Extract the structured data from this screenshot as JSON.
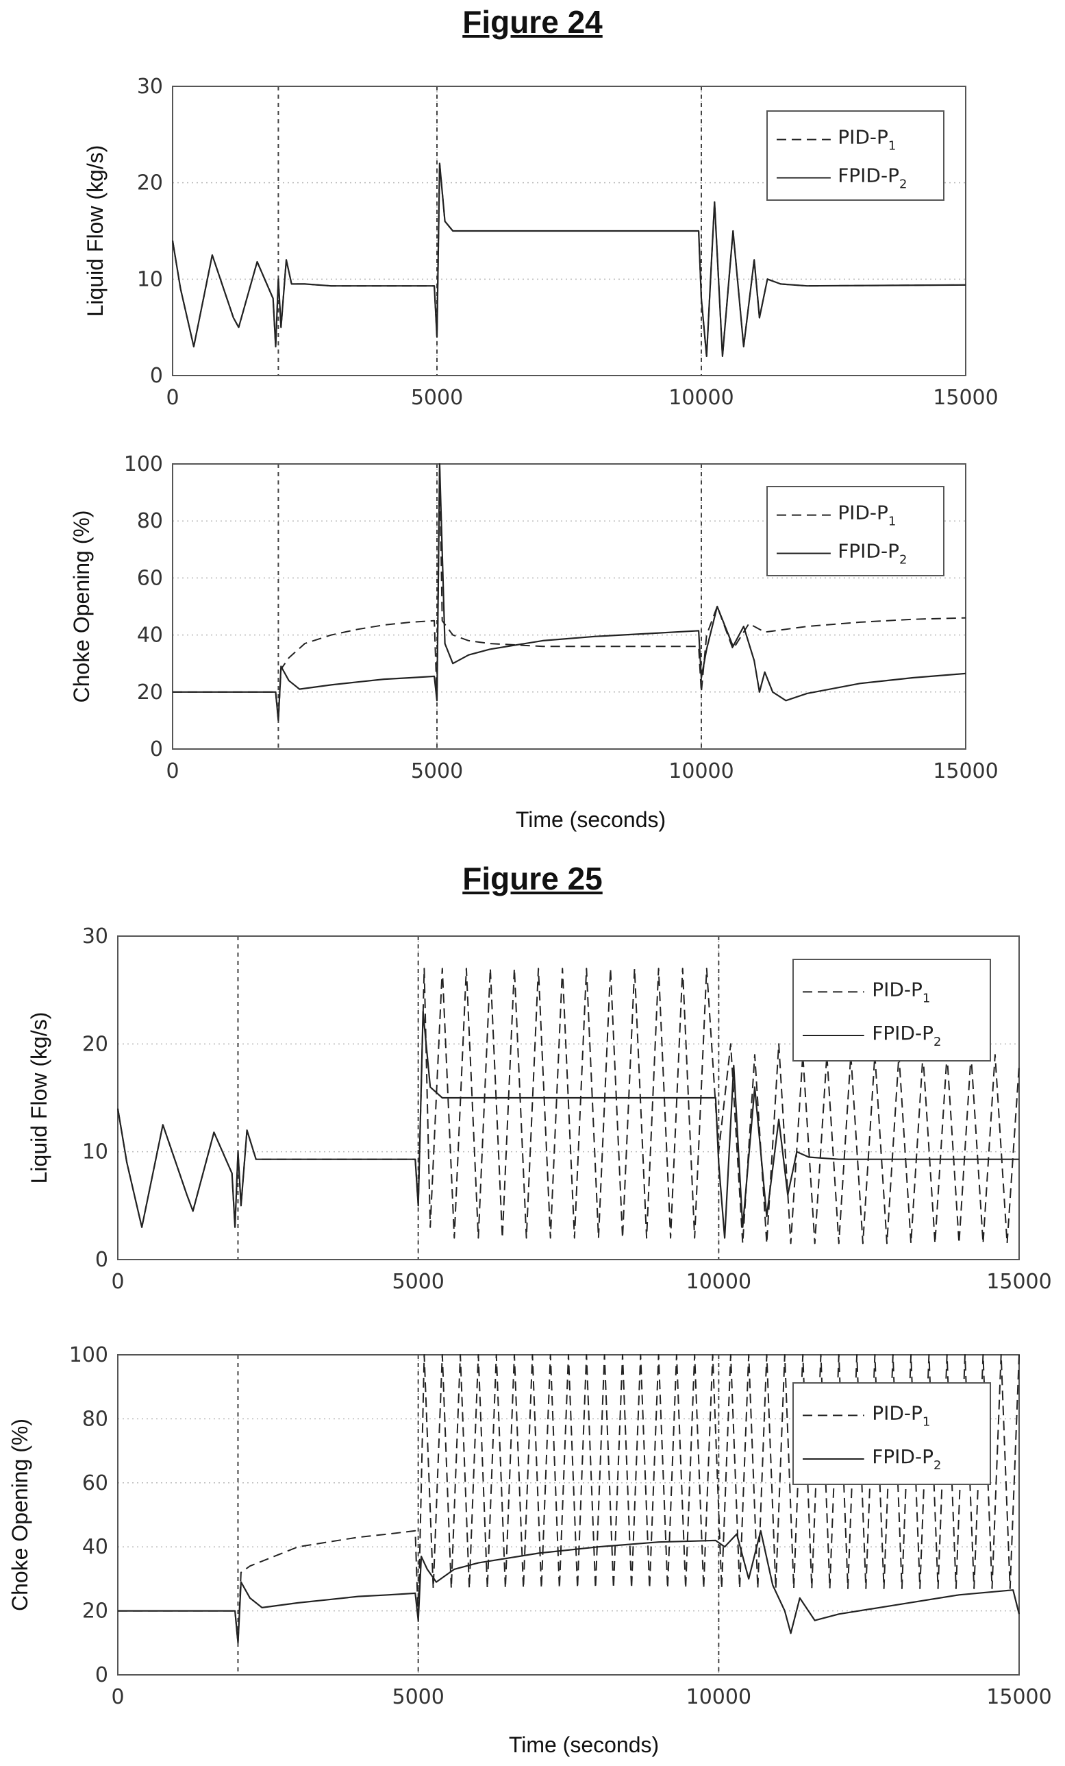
{
  "figures": [
    {
      "title": "Figure 24",
      "xlabel": "Time (seconds)"
    },
    {
      "title": "Figure 25",
      "xlabel": "Time (seconds)"
    }
  ],
  "colors": {
    "series": "#222222",
    "grid": "#b8b8b8",
    "frame": "#555555"
  },
  "chart_data": [
    {
      "type": "line",
      "figure": "Figure 24",
      "title": "",
      "xlabel": "",
      "ylabel": "Liquid Flow (kg/s)",
      "xlim": [
        0,
        15000
      ],
      "ylim": [
        0,
        30
      ],
      "xticks": [
        0,
        5000,
        10000,
        15000
      ],
      "yticks": [
        0,
        10,
        20,
        30
      ],
      "grid": true,
      "legend": "top-right",
      "legend_entries": [
        {
          "base": "PID-P",
          "sub": "1",
          "style": "dashed"
        },
        {
          "base": "FPID-P",
          "sub": "2",
          "style": "solid"
        }
      ],
      "setpoint_changes": [
        2000,
        5000,
        10000
      ],
      "series": [
        {
          "name": "PID-P1",
          "style": "dashed",
          "x": [
            0,
            150,
            400,
            750,
            1150,
            1250,
            1600,
            1900,
            1950,
            2000,
            2050,
            2150,
            2250,
            2500,
            3000,
            4950,
            5000,
            5050,
            5150,
            5300,
            5500,
            9950,
            10000,
            10100,
            10250,
            10400,
            10600,
            10800,
            11000,
            11100,
            11250,
            11500,
            12000,
            15000
          ],
          "y": [
            14,
            9,
            3,
            12.5,
            6,
            5,
            11.8,
            8,
            3,
            10,
            5,
            12,
            9.5,
            9.5,
            9.3,
            9.3,
            4,
            22,
            16,
            15,
            15,
            15,
            8,
            2,
            18,
            2,
            15,
            3,
            12,
            6,
            10,
            9.5,
            9.3,
            9.4
          ]
        },
        {
          "name": "FPID-P2",
          "style": "solid",
          "x": [
            0,
            150,
            400,
            750,
            1150,
            1250,
            1600,
            1900,
            1950,
            2000,
            2050,
            2150,
            2250,
            2500,
            3000,
            4950,
            5000,
            5050,
            5150,
            5300,
            5500,
            9950,
            10000,
            10100,
            10250,
            10400,
            10600,
            10800,
            11000,
            11100,
            11250,
            11500,
            12000,
            15000
          ],
          "y": [
            14,
            9,
            3,
            12.5,
            6,
            5,
            11.8,
            8,
            3,
            10,
            5,
            12,
            9.5,
            9.5,
            9.3,
            9.3,
            4,
            22,
            16,
            15,
            15,
            15,
            8,
            2,
            18,
            2,
            15,
            3,
            12,
            6,
            10,
            9.5,
            9.3,
            9.4
          ]
        }
      ]
    },
    {
      "type": "line",
      "figure": "Figure 24",
      "title": "",
      "xlabel": "",
      "ylabel": "Choke Opening (%)",
      "xlim": [
        0,
        15000
      ],
      "ylim": [
        0,
        100
      ],
      "xticks": [
        0,
        5000,
        10000,
        15000
      ],
      "yticks": [
        0,
        20,
        40,
        60,
        80,
        100
      ],
      "grid": true,
      "legend": "top-right",
      "legend_entries": [
        {
          "base": "PID-P",
          "sub": "1",
          "style": "dashed"
        },
        {
          "base": "FPID-P",
          "sub": "2",
          "style": "solid"
        }
      ],
      "setpoint_changes": [
        2000,
        5000,
        10000
      ],
      "series": [
        {
          "name": "PID-P1",
          "style": "dashed",
          "x": [
            0,
            1950,
            2000,
            2050,
            2200,
            2500,
            3000,
            3500,
            4000,
            4500,
            4950,
            5000,
            5050,
            5100,
            5300,
            5600,
            6000,
            7000,
            8000,
            9000,
            9950,
            10000,
            10100,
            10300,
            10600,
            10900,
            11200,
            12000,
            13000,
            14000,
            15000
          ],
          "y": [
            20,
            20,
            10,
            28,
            32,
            37,
            40,
            42,
            43.5,
            44.5,
            45,
            18,
            100,
            45,
            40,
            38,
            37,
            36,
            36,
            36,
            36,
            20,
            40,
            50,
            35,
            44,
            41,
            43,
            44.5,
            45.5,
            46
          ]
        },
        {
          "name": "FPID-P2",
          "style": "solid",
          "x": [
            0,
            1950,
            2000,
            2050,
            2200,
            2400,
            3000,
            3500,
            4000,
            4500,
            4950,
            5000,
            5050,
            5150,
            5300,
            5600,
            6000,
            7000,
            8000,
            9000,
            9950,
            10000,
            10100,
            10300,
            10600,
            10800,
            11000,
            11100,
            11200,
            11350,
            11600,
            12000,
            13000,
            14000,
            15000
          ],
          "y": [
            20,
            20,
            10,
            29,
            24,
            21,
            22.5,
            23.5,
            24.5,
            25,
            25.5,
            17,
            100,
            37,
            30,
            33,
            35,
            38,
            39.5,
            40.5,
            41.5,
            25,
            35,
            50,
            36,
            43,
            31,
            20,
            27,
            20,
            17,
            19.5,
            23,
            25,
            26.5
          ]
        }
      ]
    },
    {
      "type": "line",
      "figure": "Figure 25",
      "title": "",
      "xlabel": "",
      "ylabel": "Liquid Flow (kg/s)",
      "xlim": [
        0,
        15000
      ],
      "ylim": [
        0,
        30
      ],
      "xticks": [
        0,
        5000,
        10000,
        15000
      ],
      "yticks": [
        0,
        10,
        20,
        30
      ],
      "grid": true,
      "legend": "top-right",
      "legend_entries": [
        {
          "base": "PID-P",
          "sub": "1",
          "style": "dashed"
        },
        {
          "base": "FPID-P",
          "sub": "2",
          "style": "solid"
        }
      ],
      "setpoint_changes": [
        2000,
        5000,
        10000
      ],
      "series": [
        {
          "name": "PID-P1",
          "style": "dashed",
          "x": [
            0,
            150,
            400,
            750,
            1150,
            1250,
            1600,
            1900,
            1950,
            2000,
            2050,
            2150,
            2300,
            3000,
            4950,
            5000,
            5100,
            5200,
            5400,
            5600,
            5800,
            6000,
            6200,
            6400,
            6600,
            6800,
            7000,
            7200,
            7400,
            7600,
            7800,
            8000,
            8200,
            8400,
            8600,
            8800,
            9000,
            9200,
            9400,
            9600,
            9800,
            10000,
            10200,
            10400,
            10600,
            10800,
            11000,
            11200,
            11400,
            11600,
            11800,
            12000,
            12200,
            12400,
            12600,
            12800,
            13000,
            13200,
            13400,
            13600,
            13800,
            14000,
            14200,
            14400,
            14600,
            14800,
            15000
          ],
          "y": [
            14,
            9,
            3,
            12.5,
            6,
            4.5,
            11.8,
            8,
            3,
            10,
            5,
            12,
            9.3,
            9.3,
            9.3,
            5,
            27,
            3,
            27,
            2,
            27,
            2,
            27,
            2,
            27,
            2,
            27,
            2,
            27,
            2,
            27,
            2,
            27,
            2,
            27,
            2,
            27,
            2,
            27,
            2,
            27,
            10,
            20,
            1.5,
            19,
            1.5,
            20,
            1.5,
            19,
            1.5,
            19,
            1.5,
            19,
            1.5,
            19,
            1.5,
            19,
            1.5,
            19,
            1.5,
            19,
            1.5,
            19,
            1.5,
            19,
            1.5,
            18
          ]
        },
        {
          "name": "FPID-P2",
          "style": "solid",
          "x": [
            0,
            150,
            400,
            750,
            1150,
            1250,
            1600,
            1900,
            1950,
            2000,
            2050,
            2150,
            2300,
            3000,
            4950,
            5000,
            5080,
            5200,
            5400,
            9950,
            10000,
            10100,
            10250,
            10400,
            10600,
            10800,
            11000,
            11150,
            11300,
            11500,
            12000,
            15000
          ],
          "y": [
            14,
            9,
            3,
            12.5,
            6,
            4.5,
            11.8,
            8,
            3,
            10,
            5,
            12,
            9.3,
            9.3,
            9.3,
            5,
            23,
            16,
            15,
            15,
            9,
            2,
            18,
            3,
            16,
            4,
            13,
            6,
            10,
            9.5,
            9.3,
            9.3
          ]
        }
      ]
    },
    {
      "type": "line",
      "figure": "Figure 25",
      "title": "",
      "xlabel": "",
      "ylabel": "Choke Opening (%)",
      "xlim": [
        0,
        15000
      ],
      "ylim": [
        0,
        100
      ],
      "xticks": [
        0,
        5000,
        10000,
        15000
      ],
      "yticks": [
        0,
        20,
        40,
        60,
        80,
        100
      ],
      "grid": true,
      "legend": "top-right",
      "legend_entries": [
        {
          "base": "PID-P",
          "sub": "1",
          "style": "dashed"
        },
        {
          "base": "FPID-P",
          "sub": "2",
          "style": "solid"
        }
      ],
      "setpoint_changes": [
        2000,
        5000,
        10000
      ],
      "series": [
        {
          "name": "PID-P1",
          "style": "dashed",
          "x": [
            0,
            1950,
            2000,
            2050,
            2200,
            2600,
            3000,
            3500,
            4000,
            4500,
            4950,
            5000,
            5100,
            5250,
            5400,
            5550,
            5700,
            5850,
            6000,
            6150,
            6300,
            6450,
            6600,
            6750,
            6900,
            7050,
            7200,
            7350,
            7500,
            7650,
            7800,
            7950,
            8100,
            8250,
            8400,
            8550,
            8700,
            8850,
            9000,
            9150,
            9300,
            9450,
            9600,
            9750,
            9900,
            10050,
            10200,
            10350,
            10500,
            10650,
            10800,
            10950,
            11100,
            11250,
            11400,
            11550,
            11700,
            11850,
            12000,
            12150,
            12300,
            12450,
            12600,
            12750,
            12900,
            13050,
            13200,
            13350,
            13500,
            13650,
            13800,
            13950,
            14100,
            14250,
            14400,
            14550,
            14700,
            14850,
            15000
          ],
          "y": [
            20,
            20,
            10,
            32,
            34,
            37,
            40,
            41.5,
            43,
            44,
            45,
            17,
            100,
            27,
            100,
            27,
            100,
            27,
            100,
            27,
            100,
            27,
            100,
            27,
            100,
            27,
            100,
            27,
            100,
            27,
            100,
            27,
            100,
            27,
            100,
            27,
            100,
            27,
            100,
            27,
            100,
            27,
            100,
            27,
            100,
            27,
            100,
            27,
            100,
            27,
            100,
            27,
            100,
            27,
            100,
            27,
            100,
            27,
            100,
            27,
            100,
            27,
            100,
            27,
            100,
            27,
            100,
            27,
            100,
            27,
            100,
            27,
            100,
            27,
            100,
            27,
            100,
            27,
            100
          ]
        },
        {
          "name": "FPID-P2",
          "style": "solid",
          "x": [
            0,
            1950,
            2000,
            2050,
            2200,
            2400,
            3000,
            3500,
            4000,
            4500,
            4950,
            5000,
            5050,
            5150,
            5300,
            5600,
            6000,
            7000,
            8000,
            9000,
            9950,
            10100,
            10300,
            10500,
            10700,
            10900,
            11100,
            11200,
            11350,
            11600,
            12000,
            13000,
            14000,
            14900,
            15000
          ],
          "y": [
            20,
            20,
            10,
            29,
            24,
            21,
            22.5,
            23.5,
            24.5,
            25,
            25.5,
            17,
            37,
            33,
            29,
            33,
            35,
            38,
            40,
            41.5,
            42,
            40,
            44,
            30,
            45,
            28,
            20,
            13,
            24,
            17,
            19,
            22,
            25,
            26.5,
            19
          ]
        }
      ]
    }
  ]
}
